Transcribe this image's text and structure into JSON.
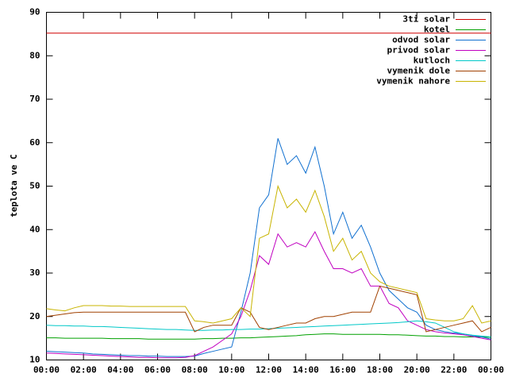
{
  "chart_data": {
    "type": "line",
    "ylabel": "teplota ve C",
    "x": [
      0,
      0.5,
      1,
      1.5,
      2,
      2.5,
      3,
      3.5,
      4,
      4.5,
      5,
      5.5,
      6,
      6.5,
      7,
      7.5,
      8,
      8.5,
      9,
      9.5,
      10,
      10.5,
      11,
      11.5,
      12,
      12.5,
      13,
      13.5,
      14,
      14.5,
      15,
      15.5,
      16,
      16.5,
      17,
      17.5,
      18,
      18.5,
      19,
      19.5,
      20,
      20.5,
      21,
      21.5,
      22,
      22.5,
      23,
      23.5,
      24
    ],
    "xlim": [
      0,
      24
    ],
    "xticks": [
      {
        "value": 0,
        "label": "00:00"
      },
      {
        "value": 2,
        "label": "02:00"
      },
      {
        "value": 4,
        "label": "04:00"
      },
      {
        "value": 6,
        "label": "06:00"
      },
      {
        "value": 8,
        "label": "08:00"
      },
      {
        "value": 10,
        "label": "10:00"
      },
      {
        "value": 12,
        "label": "12:00"
      },
      {
        "value": 14,
        "label": "14:00"
      },
      {
        "value": 16,
        "label": "16:00"
      },
      {
        "value": 18,
        "label": "18:00"
      },
      {
        "value": 20,
        "label": "20:00"
      },
      {
        "value": 22,
        "label": "22:00"
      },
      {
        "value": 24,
        "label": "00:00"
      }
    ],
    "ylim": [
      10,
      90
    ],
    "yticks": [
      10,
      20,
      30,
      40,
      50,
      60,
      70,
      80,
      90
    ],
    "legend": "top-right",
    "series": [
      {
        "name": "3ti solar",
        "color": "#d00000",
        "values": [
          85.2,
          85.2,
          85.2,
          85.2,
          85.2,
          85.2,
          85.2,
          85.2,
          85.2,
          85.2,
          85.2,
          85.2,
          85.2,
          85.2,
          85.2,
          85.2,
          85.2,
          85.2,
          85.2,
          85.2,
          85.2,
          85.2,
          85.2,
          85.2,
          85.2,
          85.2,
          85.2,
          85.2,
          85.2,
          85.2,
          85.2,
          85.2,
          85.2,
          85.2,
          85.2,
          85.2,
          85.2,
          85.2,
          85.2,
          85.2,
          85.2,
          85.2,
          85.2,
          85.2,
          85.2,
          85.2,
          85.2,
          85.2,
          85.2
        ]
      },
      {
        "name": "kotel",
        "color": "#00a000",
        "values": [
          15.1,
          15.1,
          15.0,
          15.0,
          15.0,
          15.0,
          15.0,
          14.9,
          14.9,
          14.9,
          14.9,
          14.8,
          14.8,
          14.8,
          14.8,
          14.8,
          14.8,
          14.9,
          14.9,
          15.0,
          15.0,
          15.1,
          15.1,
          15.2,
          15.3,
          15.4,
          15.5,
          15.6,
          15.8,
          15.9,
          16.0,
          16.0,
          15.9,
          15.9,
          15.9,
          15.9,
          15.9,
          15.8,
          15.8,
          15.7,
          15.6,
          15.5,
          15.5,
          15.4,
          15.4,
          15.3,
          15.3,
          15.3,
          15.2
        ]
      },
      {
        "name": "odvod solar",
        "color": "#1070d0",
        "values": [
          12.0,
          11.9,
          11.8,
          11.7,
          11.6,
          11.4,
          11.3,
          11.2,
          11.1,
          11.0,
          11.0,
          10.9,
          10.9,
          10.8,
          10.8,
          10.8,
          10.9,
          11.5,
          12.0,
          12.5,
          13.0,
          21.0,
          30.0,
          45.0,
          48.0,
          61.0,
          55.0,
          57.0,
          53.0,
          59.0,
          50.0,
          39.0,
          44.0,
          38.0,
          41.0,
          36.0,
          30.0,
          26.0,
          24.0,
          22.0,
          21.0,
          18.0,
          17.0,
          16.5,
          16.2,
          16.0,
          15.6,
          15.3,
          14.8
        ]
      },
      {
        "name": "privod solar",
        "color": "#c000c0",
        "values": [
          11.6,
          11.5,
          11.4,
          11.3,
          11.2,
          11.1,
          11.0,
          10.9,
          10.8,
          10.7,
          10.6,
          10.6,
          10.5,
          10.5,
          10.5,
          10.6,
          11.0,
          12.0,
          13.0,
          14.5,
          16.0,
          20.0,
          26.0,
          34.0,
          32.0,
          39.0,
          36.0,
          37.0,
          36.0,
          39.5,
          35.0,
          31.0,
          31.0,
          30.0,
          31.0,
          27.0,
          27.0,
          23.0,
          22.0,
          19.0,
          18.0,
          17.0,
          16.5,
          16.2,
          16.0,
          15.8,
          15.4,
          15.0,
          14.6
        ]
      },
      {
        "name": "kutloch",
        "color": "#00c8c8",
        "values": [
          18.0,
          17.9,
          17.9,
          17.8,
          17.8,
          17.7,
          17.7,
          17.6,
          17.5,
          17.4,
          17.3,
          17.2,
          17.1,
          17.0,
          17.0,
          16.9,
          16.8,
          16.8,
          16.9,
          16.9,
          17.0,
          17.0,
          17.1,
          17.1,
          17.2,
          17.3,
          17.4,
          17.5,
          17.6,
          17.7,
          17.8,
          17.9,
          18.0,
          18.1,
          18.2,
          18.3,
          18.4,
          18.5,
          18.6,
          18.8,
          19.0,
          18.8,
          18.5,
          17.5,
          16.5,
          16.0,
          15.7,
          15.5,
          15.3
        ]
      },
      {
        "name": "vymenik dole",
        "color": "#a04000",
        "values": [
          20.0,
          20.3,
          20.6,
          20.9,
          21.0,
          21.0,
          21.0,
          21.0,
          21.0,
          21.0,
          21.0,
          21.0,
          21.0,
          21.0,
          21.0,
          21.0,
          16.5,
          17.5,
          18.0,
          18.0,
          18.0,
          22.0,
          21.0,
          17.5,
          17.0,
          17.5,
          18.0,
          18.5,
          18.5,
          19.5,
          20.0,
          20.0,
          20.5,
          21.0,
          21.0,
          21.0,
          27.0,
          26.5,
          26.0,
          25.5,
          25.0,
          16.5,
          17.0,
          17.5,
          18.0,
          18.5,
          19.0,
          16.5,
          17.5
        ]
      },
      {
        "name": "vymenik nahore",
        "color": "#c8b400",
        "values": [
          21.8,
          21.5,
          21.3,
          22.0,
          22.5,
          22.5,
          22.5,
          22.4,
          22.4,
          22.3,
          22.3,
          22.3,
          22.3,
          22.3,
          22.3,
          22.3,
          19.0,
          18.8,
          18.5,
          19.0,
          19.5,
          22.0,
          20.0,
          38.0,
          39.0,
          50.0,
          45.0,
          47.0,
          44.0,
          49.0,
          43.0,
          35.0,
          38.0,
          33.0,
          35.0,
          30.0,
          28.0,
          27.0,
          26.5,
          26.0,
          25.5,
          19.5,
          19.2,
          19.0,
          19.0,
          19.5,
          22.5,
          18.5,
          19.0
        ]
      }
    ]
  }
}
